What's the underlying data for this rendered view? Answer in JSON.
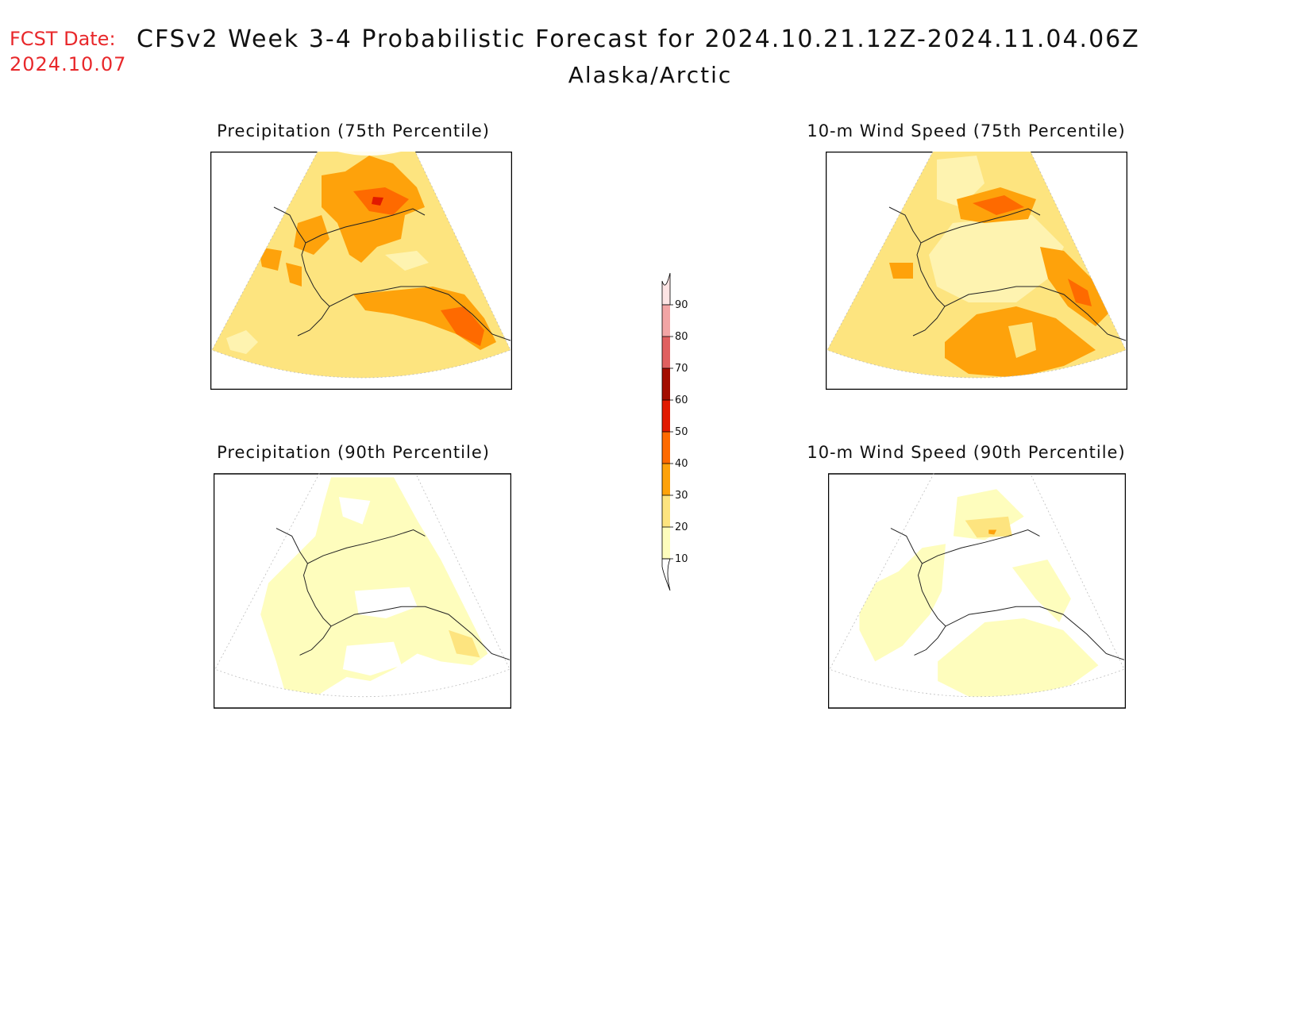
{
  "header": {
    "fcst_label": "FCST Date:",
    "fcst_date": "2024.10.07",
    "title": "CFSv2 Week 3-4 Probabilistic Forecast for 2024.10.21.12Z-2024.11.04.06Z",
    "region": "Alaska/Arctic"
  },
  "panels": [
    {
      "title": "Precipitation (75th Percentile)"
    },
    {
      "title": "10-m Wind Speed (75th Percentile)"
    },
    {
      "title": "Precipitation (90th Percentile)"
    },
    {
      "title": "10-m Wind Speed (90th Percentile)"
    }
  ],
  "colorbar": {
    "levels": [
      "10",
      "20",
      "30",
      "40",
      "50",
      "60",
      "70",
      "80",
      "90"
    ],
    "colors": [
      "#fefdbd",
      "#fde47f",
      "#fea20b",
      "#fe6a00",
      "#e11a00",
      "#a30d00",
      "#e06060",
      "#f2a5a5",
      "#fde4e4"
    ],
    "unit": ""
  }
}
